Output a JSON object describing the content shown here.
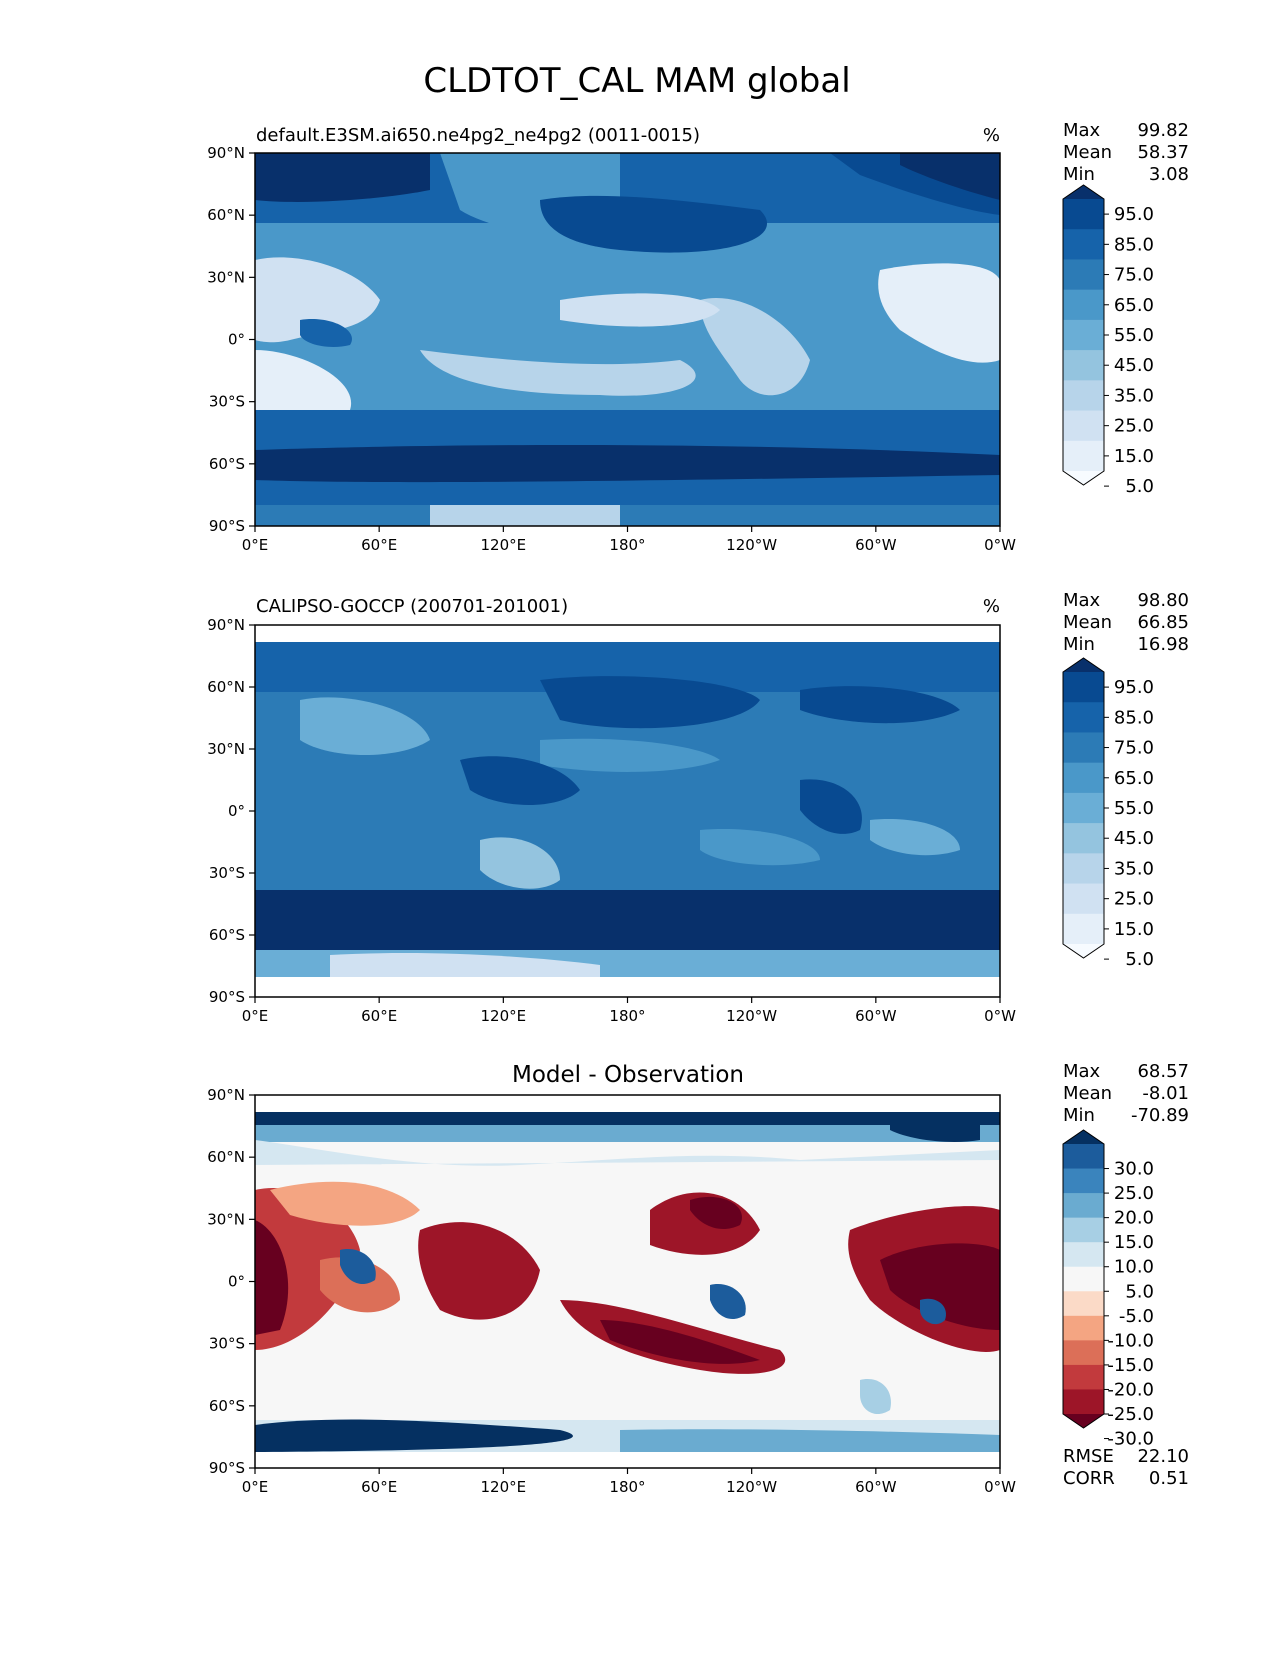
{
  "figure": {
    "title": "CLDTOT_CAL MAM global"
  },
  "chart_data": [
    {
      "type": "heatmap",
      "title": "default.E3SM.ai650.ne4pg2_ne4pg2 (0011-0015)",
      "units": "%",
      "xlabel": "",
      "ylabel": "",
      "xlim": [
        0,
        360
      ],
      "ylim": [
        -90,
        90
      ],
      "x_ticks": [
        "0°E",
        "60°E",
        "120°E",
        "180°",
        "120°W",
        "60°W",
        "0°W"
      ],
      "y_ticks": [
        "90°N",
        "60°N",
        "30°N",
        "0°",
        "30°S",
        "60°S",
        "90°S"
      ],
      "stats": {
        "max_label": "Max",
        "max": "99.82",
        "mean_label": "Mean",
        "mean": "58.37",
        "min_label": "Min",
        "min": "3.08"
      },
      "colorbar": {
        "ticks": [
          "95.0",
          "85.0",
          "75.0",
          "65.0",
          "55.0",
          "45.0",
          "35.0",
          "25.0",
          "15.0",
          "5.0"
        ],
        "colors": [
          "#08306b",
          "#084a91",
          "#1663aa",
          "#2c7bb6",
          "#4a98c9",
          "#6aaed6",
          "#94c4df",
          "#b7d4ea",
          "#d0e1f2",
          "#e5eff9",
          "#f7fbff"
        ]
      }
    },
    {
      "type": "heatmap",
      "title": "CALIPSO-GOCCP (200701-201001)",
      "units": "%",
      "xlabel": "",
      "ylabel": "",
      "xlim": [
        0,
        360
      ],
      "ylim": [
        -90,
        90
      ],
      "x_ticks": [
        "0°E",
        "60°E",
        "120°E",
        "180°",
        "120°W",
        "60°W",
        "0°W"
      ],
      "y_ticks": [
        "90°N",
        "60°N",
        "30°N",
        "0°",
        "30°S",
        "60°S",
        "90°S"
      ],
      "stats": {
        "max_label": "Max",
        "max": "98.80",
        "mean_label": "Mean",
        "mean": "66.85",
        "min_label": "Min",
        "min": "16.98"
      },
      "colorbar": {
        "ticks": [
          "95.0",
          "85.0",
          "75.0",
          "65.0",
          "55.0",
          "45.0",
          "35.0",
          "25.0",
          "15.0",
          "5.0"
        ],
        "colors": [
          "#08306b",
          "#084a91",
          "#1663aa",
          "#2c7bb6",
          "#4a98c9",
          "#6aaed6",
          "#94c4df",
          "#b7d4ea",
          "#d0e1f2",
          "#e5eff9",
          "#f7fbff"
        ]
      }
    },
    {
      "type": "heatmap",
      "title": "Model - Observation",
      "units": "",
      "xlabel": "",
      "ylabel": "",
      "xlim": [
        0,
        360
      ],
      "ylim": [
        -90,
        90
      ],
      "x_ticks": [
        "0°E",
        "60°E",
        "120°E",
        "180°",
        "120°W",
        "60°W",
        "0°W"
      ],
      "y_ticks": [
        "90°N",
        "60°N",
        "30°N",
        "0°",
        "30°S",
        "60°S",
        "90°S"
      ],
      "stats": {
        "max_label": "Max",
        "max": "68.57",
        "mean_label": "Mean",
        "mean": "-8.01",
        "min_label": "Min",
        "min": "-70.89"
      },
      "metrics": {
        "rmse_label": "RMSE",
        "rmse": "22.10",
        "corr_label": "CORR",
        "corr": "0.51"
      },
      "colorbar": {
        "ticks": [
          "30.0",
          "25.0",
          "20.0",
          "15.0",
          "10.0",
          "5.0",
          "-5.0",
          "-10.0",
          "-15.0",
          "-20.0",
          "-25.0",
          "-30.0"
        ],
        "colors": [
          "#053061",
          "#1c5c9c",
          "#3a84bd",
          "#6aabd0",
          "#a7cfe4",
          "#d5e7f1",
          "#f7f7f7",
          "#fbdac7",
          "#f4a582",
          "#dc6f58",
          "#c23a3d",
          "#9d1528",
          "#67001f"
        ]
      }
    }
  ]
}
